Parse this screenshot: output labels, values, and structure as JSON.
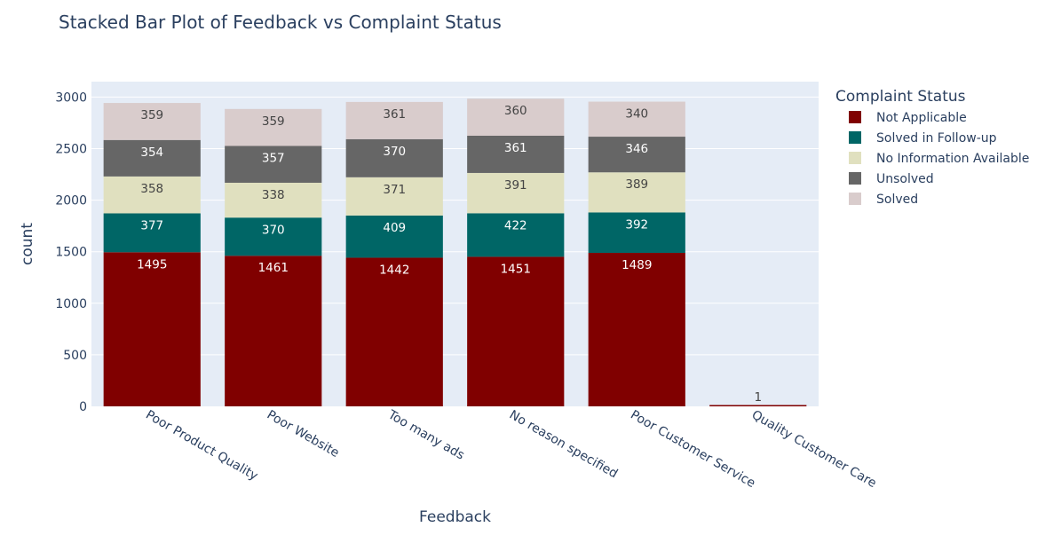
{
  "chart_data": {
    "type": "bar",
    "stacked": true,
    "title": "Stacked Bar Plot of Feedback vs Complaint Status",
    "xlabel": "Feedback",
    "ylabel": "count",
    "ylim": [
      0,
      3150
    ],
    "yticks": [
      0,
      500,
      1000,
      1500,
      2000,
      2500,
      3000
    ],
    "grid": true,
    "legend_title": "Complaint Status",
    "legend_position": "top-right",
    "categories": [
      "Poor Product Quality",
      "Poor Website",
      "Too many ads",
      "No reason specified",
      "Poor Customer Service",
      "Quality Customer Care"
    ],
    "series": [
      {
        "name": "Not Applicable",
        "color": "#800000",
        "label_color": "#ffffff",
        "values": [
          1495,
          1461,
          1442,
          1451,
          1489,
          1
        ]
      },
      {
        "name": "Solved in Follow-up",
        "color": "#006666",
        "label_color": "#ffffff",
        "values": [
          377,
          370,
          409,
          422,
          392,
          null
        ]
      },
      {
        "name": "No Information Available",
        "color": "#e0e0bf",
        "label_color": "#444444",
        "values": [
          358,
          338,
          371,
          391,
          389,
          null
        ]
      },
      {
        "name": "Unsolved",
        "color": "#666666",
        "label_color": "#ffffff",
        "values": [
          354,
          357,
          370,
          361,
          346,
          null
        ]
      },
      {
        "name": "Solved",
        "color": "#d9cccc",
        "label_color": "#444444",
        "values": [
          359,
          359,
          361,
          360,
          340,
          null
        ]
      }
    ],
    "plot_background": "#e5ecf6",
    "text_color": "#2a3f5f"
  }
}
